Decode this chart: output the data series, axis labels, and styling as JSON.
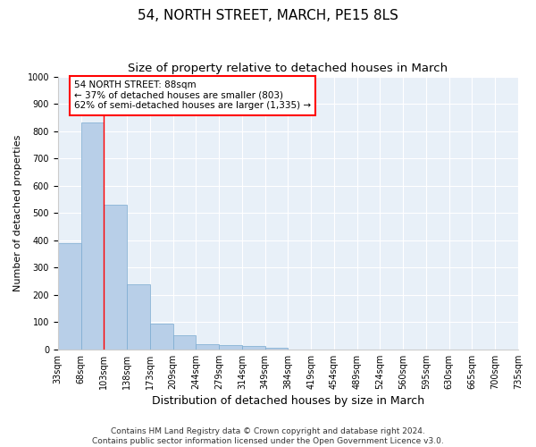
{
  "title": "54, NORTH STREET, MARCH, PE15 8LS",
  "subtitle": "Size of property relative to detached houses in March",
  "xlabel": "Distribution of detached houses by size in March",
  "ylabel": "Number of detached properties",
  "bins": [
    "33sqm",
    "68sqm",
    "103sqm",
    "138sqm",
    "173sqm",
    "209sqm",
    "244sqm",
    "279sqm",
    "314sqm",
    "349sqm",
    "384sqm",
    "419sqm",
    "454sqm",
    "489sqm",
    "524sqm",
    "560sqm",
    "595sqm",
    "630sqm",
    "665sqm",
    "700sqm",
    "735sqm"
  ],
  "bar_values": [
    390,
    830,
    530,
    240,
    95,
    52,
    18,
    15,
    12,
    5,
    0,
    0,
    0,
    0,
    0,
    0,
    0,
    0,
    0,
    0
  ],
  "bar_color": "#b8cfe8",
  "bar_edge_color": "#7aaad0",
  "vline_color": "red",
  "annotation_text": "54 NORTH STREET: 88sqm\n← 37% of detached houses are smaller (803)\n62% of semi-detached houses are larger (1,335) →",
  "annotation_box_color": "white",
  "annotation_box_edge_color": "red",
  "ylim": [
    0,
    1000
  ],
  "yticks": [
    0,
    100,
    200,
    300,
    400,
    500,
    600,
    700,
    800,
    900,
    1000
  ],
  "bg_color": "#e8f0f8",
  "footnote": "Contains HM Land Registry data © Crown copyright and database right 2024.\nContains public sector information licensed under the Open Government Licence v3.0.",
  "title_fontsize": 11,
  "subtitle_fontsize": 9.5,
  "xlabel_fontsize": 9,
  "ylabel_fontsize": 8,
  "tick_fontsize": 7,
  "annotation_fontsize": 7.5,
  "footnote_fontsize": 6.5
}
